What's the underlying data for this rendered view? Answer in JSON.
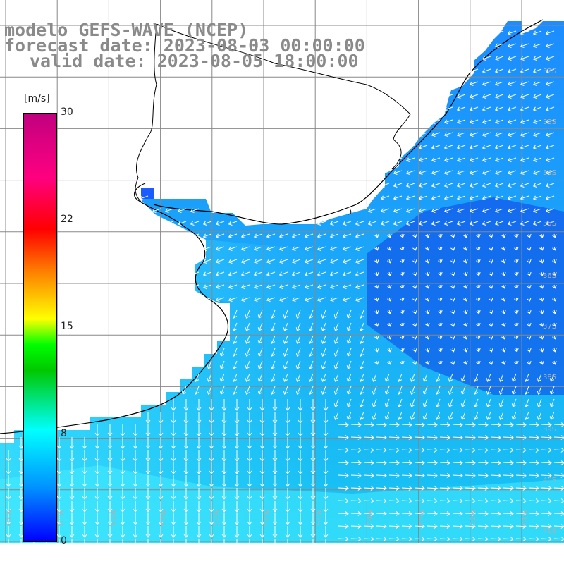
{
  "title": {
    "line1": "modelo GEFS-WAVE (NCEP)",
    "line2": "forecast date: 2023-08-03 00:00:00",
    "line3": "valid date: 2023-08-05 18:00:00"
  },
  "colorbar": {
    "unit": "[m/s]",
    "ticks": [
      "30",
      "22",
      "15",
      "8",
      "0"
    ],
    "colors": [
      "#0000ff",
      "#0096ff",
      "#00ffff",
      "#00c800",
      "#00ff00",
      "#ffff00",
      "#ff8000",
      "#ff0000",
      "#ff0080",
      "#c0007f"
    ]
  },
  "lat_labels": [
    "32S",
    "33S",
    "34S",
    "35S",
    "36S",
    "37S",
    "38S",
    "39S",
    "40S",
    "41S"
  ],
  "lon_labels": [
    "61W",
    "60W",
    "59W",
    "58W",
    "57W",
    "56W",
    "55W",
    "54W",
    "53W",
    "52W",
    "51W"
  ]
}
